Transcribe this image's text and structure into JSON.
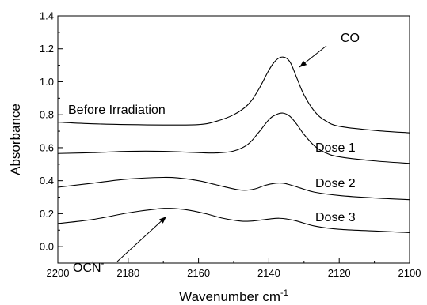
{
  "chart_data": {
    "type": "line",
    "xlabel": "Wavenumber cm",
    "xlabel_sup": "-1",
    "ylabel": "Absorbance",
    "xlim": [
      2200,
      2100
    ],
    "ylim": [
      -0.1,
      1.4
    ],
    "x_reversed": true,
    "grid": false,
    "x_ticks": [
      "2200",
      "2180",
      "2160",
      "2140",
      "2120",
      "2100"
    ],
    "y_ticks": [
      "0.0",
      "0.2",
      "0.4",
      "0.6",
      "0.8",
      "1.0",
      "1.2",
      "1.4"
    ],
    "series": [
      {
        "name": "Before Irradiation",
        "x": [
          2200,
          2190,
          2180,
          2170,
          2160,
          2155,
          2150,
          2146,
          2143,
          2140,
          2138,
          2136,
          2134,
          2132,
          2130,
          2127,
          2124,
          2120,
          2110,
          2100
        ],
        "y": [
          0.755,
          0.745,
          0.74,
          0.738,
          0.74,
          0.76,
          0.8,
          0.86,
          0.95,
          1.07,
          1.13,
          1.15,
          1.12,
          1.02,
          0.92,
          0.82,
          0.765,
          0.73,
          0.705,
          0.69
        ]
      },
      {
        "name": "Dose 1",
        "x": [
          2200,
          2190,
          2180,
          2170,
          2160,
          2155,
          2150,
          2146,
          2143,
          2140,
          2138,
          2136,
          2134,
          2132,
          2130,
          2127,
          2124,
          2120,
          2110,
          2100
        ],
        "y": [
          0.565,
          0.57,
          0.578,
          0.578,
          0.57,
          0.568,
          0.58,
          0.62,
          0.69,
          0.77,
          0.8,
          0.81,
          0.79,
          0.74,
          0.68,
          0.61,
          0.57,
          0.545,
          0.52,
          0.505
        ]
      },
      {
        "name": "Dose 2",
        "x": [
          2200,
          2190,
          2180,
          2170,
          2165,
          2160,
          2155,
          2150,
          2147,
          2144,
          2141,
          2138,
          2136,
          2134,
          2131,
          2127,
          2120,
          2110,
          2100
        ],
        "y": [
          0.36,
          0.385,
          0.41,
          0.42,
          0.415,
          0.4,
          0.375,
          0.35,
          0.342,
          0.35,
          0.372,
          0.385,
          0.385,
          0.375,
          0.355,
          0.33,
          0.31,
          0.295,
          0.285
        ]
      },
      {
        "name": "Dose 3",
        "x": [
          2200,
          2190,
          2180,
          2172,
          2168,
          2163,
          2158,
          2153,
          2148,
          2145,
          2142,
          2139,
          2137,
          2135,
          2132,
          2127,
          2120,
          2110,
          2100
        ],
        "y": [
          0.14,
          0.165,
          0.205,
          0.228,
          0.232,
          0.222,
          0.2,
          0.172,
          0.155,
          0.155,
          0.162,
          0.17,
          0.172,
          0.168,
          0.155,
          0.125,
          0.105,
          0.095,
          0.085
        ]
      }
    ],
    "annotations": [
      {
        "text": "CO",
        "arrow": true,
        "at": [
          2137,
          1.14
        ]
      },
      {
        "text": "OCN",
        "superscript": "-",
        "arrow": true,
        "at": [
          2168,
          0.23
        ]
      }
    ]
  }
}
